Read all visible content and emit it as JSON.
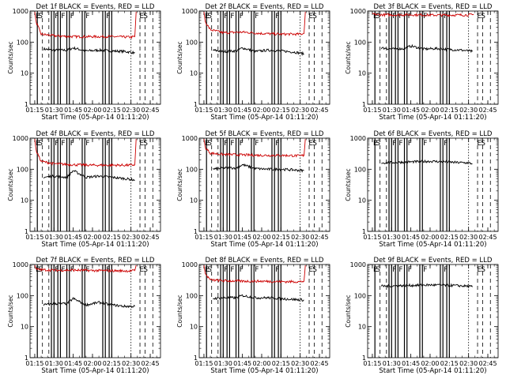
{
  "page": {
    "xlabel": "Start Time (05-Apr-14 01:11:20)",
    "ylabel": "Counts/sec",
    "x_ticks": [
      "01:15",
      "01:30",
      "01:45",
      "02:00",
      "02:15",
      "02:30",
      "02:45"
    ],
    "y_ticks": [
      "1",
      "10",
      "100",
      "1000"
    ]
  },
  "colors": {
    "events": "#000000",
    "lld": "#cc0000"
  },
  "chart_data": [
    {
      "type": "line",
      "title": "Det 1f BLACK = Events, RED = LLD",
      "y_scale": "log",
      "ylim": [
        1,
        1000
      ],
      "xlim": [
        "01:11:20",
        "02:53:00"
      ],
      "series": [
        {
          "name": "Events",
          "color": "#000000",
          "x": [
            "01:22",
            "01:30",
            "01:40",
            "01:45",
            "01:55",
            "02:05",
            "02:15",
            "02:25",
            "02:33"
          ],
          "y": [
            60,
            55,
            55,
            65,
            52,
            55,
            52,
            50,
            45
          ]
        },
        {
          "name": "LLD",
          "color": "#cc0000",
          "x": [
            "01:15",
            "01:16",
            "01:20",
            "01:30",
            "01:45",
            "02:00",
            "02:15",
            "02:30",
            "02:33",
            "02:34"
          ],
          "y": [
            950,
            450,
            180,
            160,
            150,
            150,
            150,
            145,
            150,
            950
          ]
        }
      ],
      "annotations": [
        "E",
        "S",
        "F",
        "F",
        "F",
        "F",
        "F",
        "E",
        "S"
      ]
    },
    {
      "type": "line",
      "title": "Det 2f BLACK = Events, RED = LLD",
      "y_scale": "log",
      "ylim": [
        1,
        1000
      ],
      "xlim": [
        "01:11:20",
        "02:53:00"
      ],
      "series": [
        {
          "name": "Events",
          "color": "#000000",
          "x": [
            "01:22",
            "01:30",
            "01:40",
            "01:45",
            "01:55",
            "02:05",
            "02:15",
            "02:25",
            "02:33"
          ],
          "y": [
            55,
            50,
            52,
            65,
            50,
            55,
            52,
            48,
            42
          ]
        },
        {
          "name": "LLD",
          "color": "#cc0000",
          "x": [
            "01:15",
            "01:16",
            "01:20",
            "01:30",
            "01:45",
            "02:00",
            "02:15",
            "02:30",
            "02:33",
            "02:34"
          ],
          "y": [
            950,
            450,
            250,
            200,
            210,
            190,
            180,
            180,
            190,
            950
          ]
        }
      ],
      "annotations": [
        "E",
        "S",
        "F",
        "F",
        "F",
        "F",
        "F",
        "E",
        "S"
      ]
    },
    {
      "type": "line",
      "title": "Det 3f BLACK = Events, RED = LLD",
      "y_scale": "log",
      "ylim": [
        1,
        1000
      ],
      "xlim": [
        "01:11:20",
        "02:53:00"
      ],
      "series": [
        {
          "name": "Events",
          "color": "#000000",
          "x": [
            "01:22",
            "01:30",
            "01:40",
            "01:45",
            "01:55",
            "02:05",
            "02:15",
            "02:25",
            "02:33"
          ],
          "y": [
            65,
            60,
            62,
            75,
            60,
            62,
            58,
            55,
            50
          ]
        },
        {
          "name": "LLD",
          "color": "#cc0000",
          "x": [
            "01:15",
            "01:20",
            "01:30",
            "01:45",
            "02:00",
            "02:15",
            "02:30",
            "02:34"
          ],
          "y": [
            800,
            760,
            750,
            760,
            740,
            740,
            750,
            760
          ]
        }
      ],
      "annotations": [
        "E",
        "S",
        "F",
        "F",
        "F",
        "F",
        "F",
        "E",
        "S"
      ]
    },
    {
      "type": "line",
      "title": "Det 4f BLACK = Events, RED = LLD",
      "y_scale": "log",
      "ylim": [
        1,
        1000
      ],
      "xlim": [
        "01:11:20",
        "02:53:00"
      ],
      "series": [
        {
          "name": "Events",
          "color": "#000000",
          "x": [
            "01:22",
            "01:30",
            "01:40",
            "01:45",
            "01:55",
            "02:05",
            "02:15",
            "02:25",
            "02:33"
          ],
          "y": [
            55,
            60,
            55,
            90,
            55,
            60,
            55,
            50,
            45
          ]
        },
        {
          "name": "LLD",
          "color": "#cc0000",
          "x": [
            "01:15",
            "01:16",
            "01:20",
            "01:30",
            "01:45",
            "02:00",
            "02:15",
            "02:30",
            "02:33",
            "02:34"
          ],
          "y": [
            950,
            400,
            180,
            150,
            140,
            135,
            135,
            135,
            140,
            950
          ]
        }
      ],
      "annotations": [
        "E",
        "S",
        "F",
        "F",
        "F",
        "F",
        "F",
        "E",
        "S"
      ]
    },
    {
      "type": "line",
      "title": "Det 5f BLACK = Events, RED = LLD",
      "y_scale": "log",
      "ylim": [
        1,
        1000
      ],
      "xlim": [
        "01:11:20",
        "02:53:00"
      ],
      "series": [
        {
          "name": "Events",
          "color": "#000000",
          "x": [
            "01:22",
            "01:30",
            "01:40",
            "01:45",
            "01:55",
            "02:05",
            "02:15",
            "02:25",
            "02:33"
          ],
          "y": [
            100,
            110,
            110,
            140,
            105,
            100,
            100,
            95,
            90
          ]
        },
        {
          "name": "LLD",
          "color": "#cc0000",
          "x": [
            "01:15",
            "01:16",
            "01:20",
            "01:30",
            "01:45",
            "02:00",
            "02:15",
            "02:30",
            "02:33",
            "02:34"
          ],
          "y": [
            950,
            500,
            330,
            300,
            290,
            280,
            280,
            270,
            280,
            950
          ]
        }
      ],
      "annotations": [
        "E",
        "S",
        "F",
        "F",
        "F",
        "F",
        "F",
        "E",
        "S"
      ]
    },
    {
      "type": "line",
      "title": "Det 6f BLACK = Events, RED = LLD",
      "y_scale": "log",
      "ylim": [
        1,
        1000
      ],
      "xlim": [
        "01:11:20",
        "02:53:00"
      ],
      "series": [
        {
          "name": "Events",
          "color": "#000000",
          "x": [
            "01:22",
            "01:30",
            "01:40",
            "01:50",
            "02:00",
            "02:10",
            "02:20",
            "02:30",
            "02:33"
          ],
          "y": [
            160,
            165,
            170,
            175,
            180,
            175,
            165,
            160,
            150
          ]
        },
        {
          "name": "LLD",
          "color": "#cc0000",
          "x": [],
          "y": []
        }
      ],
      "annotations": [
        "E",
        "S",
        "F",
        "F",
        "F",
        "F",
        "F",
        "E",
        "S"
      ]
    },
    {
      "type": "line",
      "title": "Det 7f BLACK = Events, RED = LLD",
      "y_scale": "log",
      "ylim": [
        1,
        1000
      ],
      "xlim": [
        "01:11:20",
        "02:53:00"
      ],
      "series": [
        {
          "name": "Events",
          "color": "#000000",
          "x": [
            "01:22",
            "01:30",
            "01:40",
            "01:45",
            "01:55",
            "02:05",
            "02:15",
            "02:25",
            "02:33"
          ],
          "y": [
            50,
            55,
            55,
            80,
            50,
            60,
            50,
            45,
            45
          ]
        },
        {
          "name": "LLD",
          "color": "#cc0000",
          "x": [
            "01:15",
            "01:16",
            "01:20",
            "01:30",
            "01:45",
            "02:00",
            "02:15",
            "02:30",
            "02:33",
            "02:34"
          ],
          "y": [
            950,
            700,
            680,
            650,
            660,
            640,
            630,
            620,
            640,
            950
          ]
        }
      ],
      "annotations": [
        "E",
        "S",
        "F",
        "F",
        "F",
        "F",
        "F",
        "E",
        "S"
      ]
    },
    {
      "type": "line",
      "title": "Det 8f BLACK = Events, RED = LLD",
      "y_scale": "log",
      "ylim": [
        1,
        1000
      ],
      "xlim": [
        "01:11:20",
        "02:53:00"
      ],
      "series": [
        {
          "name": "Events",
          "color": "#000000",
          "x": [
            "01:22",
            "01:30",
            "01:40",
            "01:45",
            "01:55",
            "02:05",
            "02:15",
            "02:25",
            "02:33"
          ],
          "y": [
            80,
            85,
            85,
            100,
            85,
            85,
            80,
            75,
            72
          ]
        },
        {
          "name": "LLD",
          "color": "#cc0000",
          "x": [
            "01:15",
            "01:16",
            "01:20",
            "01:30",
            "01:45",
            "02:00",
            "02:15",
            "02:30",
            "02:33",
            "02:34"
          ],
          "y": [
            950,
            500,
            320,
            300,
            290,
            290,
            280,
            280,
            290,
            950
          ]
        }
      ],
      "annotations": [
        "E",
        "S",
        "F",
        "F",
        "F",
        "F",
        "F",
        "E",
        "S"
      ]
    },
    {
      "type": "line",
      "title": "Det 9f BLACK = Events, RED = LLD",
      "y_scale": "log",
      "ylim": [
        1,
        1000
      ],
      "xlim": [
        "01:11:20",
        "02:53:00"
      ],
      "series": [
        {
          "name": "Events",
          "color": "#000000",
          "x": [
            "01:22",
            "01:30",
            "01:40",
            "01:50",
            "02:00",
            "02:10",
            "02:20",
            "02:30",
            "02:33"
          ],
          "y": [
            200,
            205,
            210,
            215,
            220,
            215,
            210,
            200,
            190
          ]
        },
        {
          "name": "LLD",
          "color": "#cc0000",
          "x": [],
          "y": []
        }
      ],
      "annotations": [
        "E",
        "S",
        "F",
        "F",
        "F",
        "F",
        "F",
        "E",
        "S"
      ]
    }
  ]
}
